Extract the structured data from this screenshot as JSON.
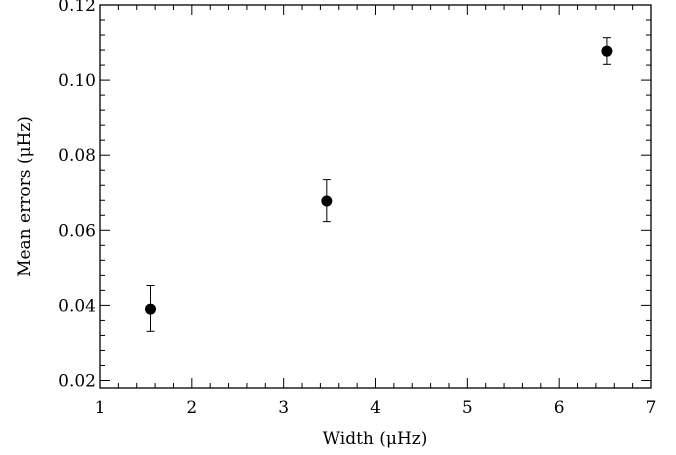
{
  "chart_data": {
    "type": "scatter",
    "xlabel": "Width (μHz)",
    "ylabel": "Mean errors (μHz)",
    "xlim": [
      1,
      7
    ],
    "ylim": [
      0.018,
      0.12
    ],
    "x_ticks": [
      1,
      2,
      3,
      4,
      5,
      6,
      7
    ],
    "x_tick_labels": [
      "1",
      "2",
      "3",
      "4",
      "5",
      "6",
      "7"
    ],
    "y_ticks": [
      0.02,
      0.04,
      0.06,
      0.08,
      0.1,
      0.12
    ],
    "y_tick_labels": [
      "0.02",
      "0.04",
      "0.06",
      "0.08",
      "0.10",
      "0.12"
    ],
    "grid": false,
    "marker": "filled-circle",
    "error_bars": true,
    "points": [
      {
        "x": 1.55,
        "y": 0.039,
        "err_low": 0.0059,
        "err_high": 0.0063
      },
      {
        "x": 3.47,
        "y": 0.0678,
        "err_low": 0.0055,
        "err_high": 0.0057
      },
      {
        "x": 6.52,
        "y": 0.1077,
        "err_low": 0.0035,
        "err_high": 0.0036
      }
    ],
    "colors": {
      "marks": "#000000",
      "background": "#ffffff"
    }
  }
}
